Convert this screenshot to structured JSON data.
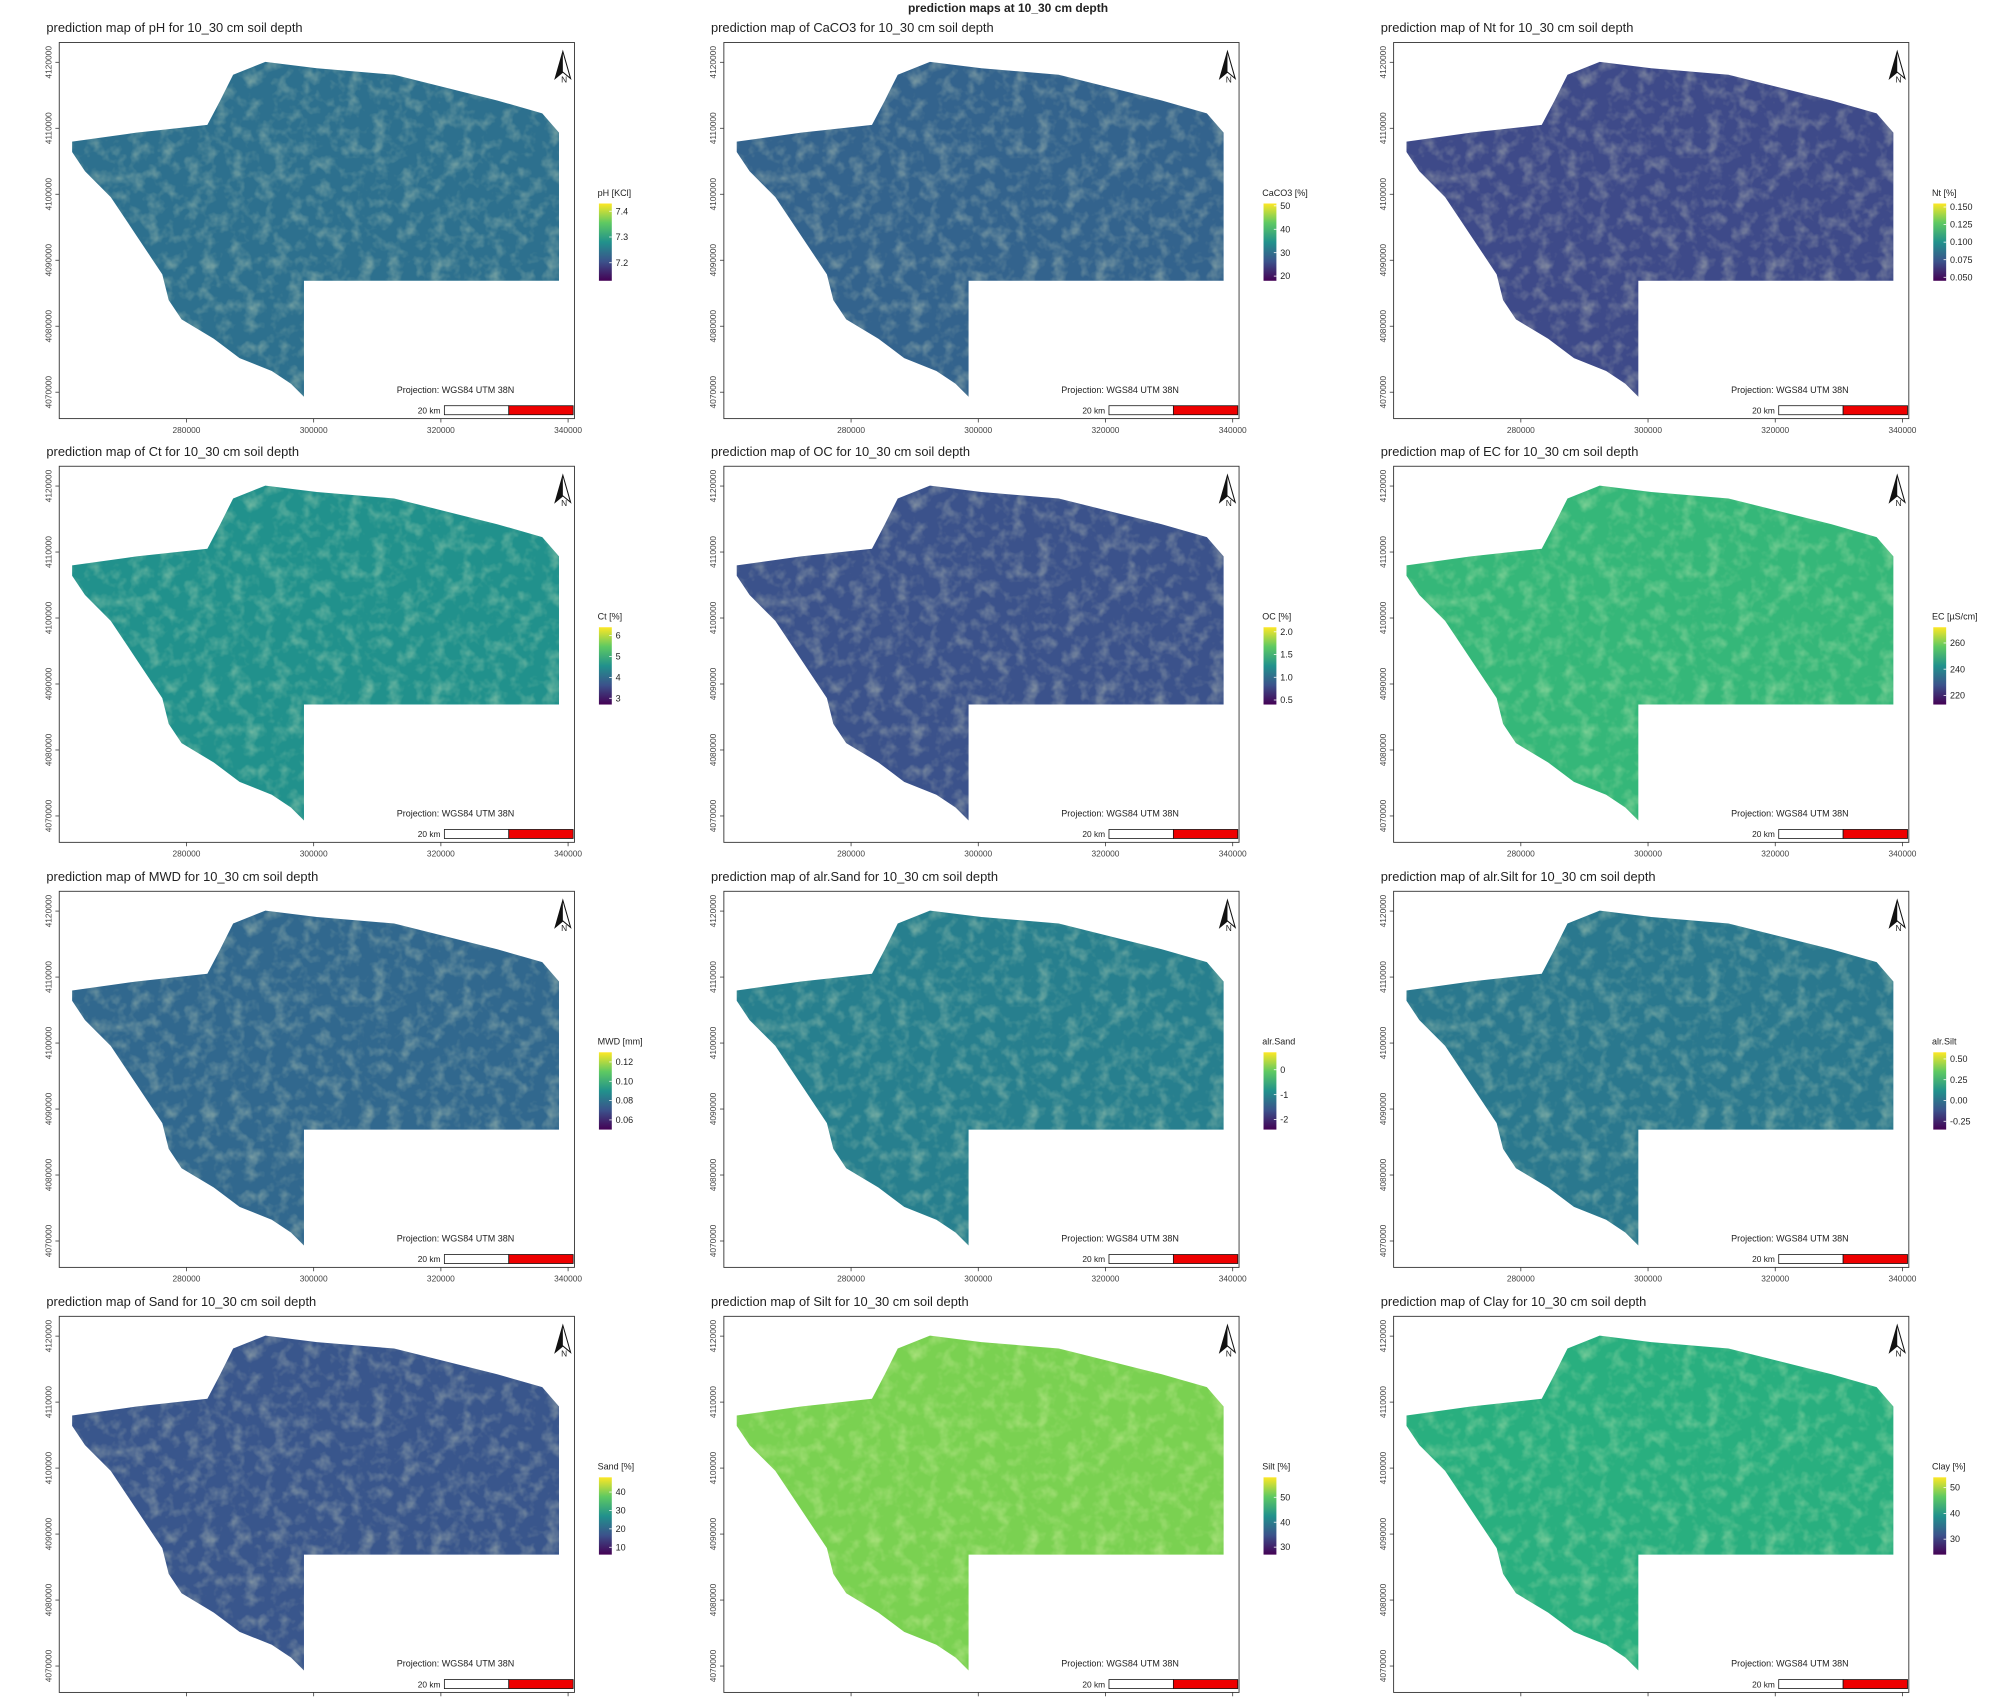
{
  "title": "prediction maps at 10_30 cm depth",
  "xlim": [
    260000,
    341000
  ],
  "ylim": [
    4066000,
    4123000
  ],
  "xticks": [
    280000,
    300000,
    320000,
    340000
  ],
  "yticks": [
    4070000,
    4080000,
    4090000,
    4100000,
    4110000,
    4120000
  ],
  "projection": "Projection: WGS84 UTM 38N",
  "scale_label": "20 km",
  "north": "N",
  "maps": [
    {
      "title": "prediction map of pH for 10_30 cm soil depth",
      "legend_title": "pH [KCl]",
      "legend_ticks": [
        7.2,
        7.3,
        7.4
      ],
      "legend_lim": [
        7.13,
        7.43
      ],
      "color": "#2d708e"
    },
    {
      "title": "prediction map of CaCO3 for 10_30 cm soil depth",
      "legend_title": "CaCO3 [%]",
      "legend_ticks": [
        20,
        30,
        40,
        50
      ],
      "legend_lim": [
        18,
        51
      ],
      "color": "#33638d"
    },
    {
      "title": "prediction map of Nt for 10_30 cm soil depth",
      "legend_title": "Nt [%]",
      "legend_ticks": [
        {
          "value": 0.05,
          "label": "0.050"
        },
        0.075,
        {
          "value": 0.1,
          "label": "0.100"
        },
        0.125,
        {
          "value": 0.15,
          "label": "0.150"
        }
      ],
      "legend_lim": [
        0.045,
        0.155
      ],
      "color": "#3e4a89"
    },
    {
      "title": "prediction map of Ct for 10_30 cm soil depth",
      "legend_title": "Ct [%]",
      "legend_ticks": [
        3,
        4,
        5,
        6
      ],
      "legend_lim": [
        2.7,
        6.4
      ],
      "color": "#21918c"
    },
    {
      "title": "prediction map of OC for 10_30 cm soil depth",
      "legend_title": "OC [%]",
      "legend_ticks": [
        0.5,
        {
          "value": 1,
          "label": "1.0"
        },
        1.5,
        {
          "value": 2,
          "label": "2.0"
        }
      ],
      "legend_lim": [
        0.4,
        2.1
      ],
      "color": "#3b528b"
    },
    {
      "title": "prediction map of EC for 10_30 cm soil depth",
      "legend_title": "EC [µS/cm]",
      "legend_ticks": [
        220,
        240,
        260
      ],
      "legend_lim": [
        213,
        272
      ],
      "color": "#35b779"
    },
    {
      "title": "prediction map of MWD for 10_30 cm soil depth",
      "legend_title": "MWD [mm]",
      "legend_ticks": [
        0.06,
        0.08,
        {
          "value": 0.1,
          "label": "0.10"
        },
        0.12
      ],
      "legend_lim": [
        0.05,
        0.13
      ],
      "color": "#31688e"
    },
    {
      "title": "prediction map of alr.Sand for 10_30 cm soil depth",
      "legend_title": "alr.Sand",
      "legend_ticks": [
        -2,
        -1,
        0
      ],
      "legend_lim": [
        -2.4,
        0.7
      ],
      "color": "#277f8e"
    },
    {
      "title": "prediction map of alr.Silt for 10_30 cm soil depth",
      "legend_title": "alr.Silt",
      "legend_ticks": [
        -0.25,
        {
          "value": 0,
          "label": "0.00"
        },
        0.25,
        {
          "value": 0.5,
          "label": "0.50"
        }
      ],
      "legend_lim": [
        -0.35,
        0.58
      ],
      "color": "#2a788e"
    },
    {
      "title": "prediction map of Sand for 10_30 cm soil depth",
      "legend_title": "Sand [%]",
      "legend_ticks": [
        10,
        20,
        30,
        40
      ],
      "legend_lim": [
        6,
        48
      ],
      "color": "#39568c"
    },
    {
      "title": "prediction map of Silt for 10_30 cm soil depth",
      "legend_title": "Silt [%]",
      "legend_ticks": [
        30,
        40,
        50
      ],
      "legend_lim": [
        27,
        58
      ],
      "color": "#7ad151"
    },
    {
      "title": "prediction map of Clay for 10_30 cm soil depth",
      "legend_title": "Clay [%]",
      "legend_ticks": [
        30,
        40,
        50
      ],
      "legend_lim": [
        24,
        54
      ],
      "color": "#29af7f"
    }
  ]
}
